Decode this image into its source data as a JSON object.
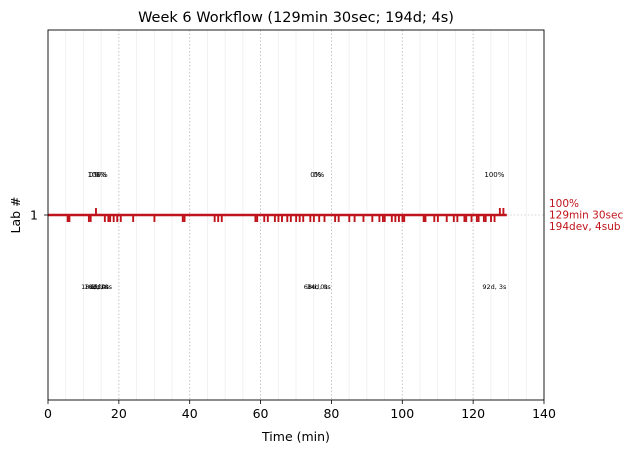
{
  "chart_data": {
    "type": "line",
    "title": "Week 6 Workflow (129min 30sec; 194d; 4s)",
    "xlabel": "Time (min)",
    "ylabel": "Lab #",
    "xlim": [
      0,
      140
    ],
    "xticks": [
      0,
      20,
      40,
      60,
      80,
      100,
      120,
      140
    ],
    "xtick_labels": [
      "0",
      "20",
      "40",
      "60",
      "80",
      "100",
      "120",
      "140"
    ],
    "yticks": [
      1
    ],
    "ytick_labels": [
      "1"
    ],
    "grid": {
      "major_x": true,
      "minor_x": true,
      "style": "dotted"
    },
    "series": [
      {
        "lab": 1,
        "color": "#c0141c",
        "x_start": 0,
        "x_end": 129.5,
        "end_label": [
          "100%",
          "129min 30sec",
          "194dev, 4sub"
        ],
        "events_down": [
          5.5,
          6,
          11.5,
          12,
          16,
          17,
          17.5,
          18.5,
          19.5,
          20.5,
          24,
          30,
          38,
          38.5,
          47,
          48,
          49,
          58.5,
          59,
          61,
          62,
          64,
          65,
          66,
          67.5,
          68.5,
          70,
          71,
          72,
          74,
          75,
          76.5,
          78,
          81,
          82,
          85,
          86.5,
          89,
          91.5,
          93.5,
          94.5,
          95,
          97,
          98,
          99,
          100,
          100.5,
          106,
          106.5,
          109,
          110,
          112.5,
          114.5,
          115.5,
          117.5,
          118,
          119.5,
          121,
          121.5,
          123,
          123.5,
          125,
          126
        ],
        "events_up": [
          13.5,
          127.5,
          128.5
        ],
        "annotations": [
          {
            "x": 14,
            "pct_labels": [
              "0%",
              "100%",
              "0%"
            ],
            "time_labels": [
              "18d, 0s",
              "16d, 1s",
              "1d, 0s",
              "2d, 0s"
            ]
          },
          {
            "x": 76,
            "pct_labels": [
              "0%",
              "0%"
            ],
            "time_labels": [
              "68d, 0s",
              "34d, 0s"
            ]
          },
          {
            "x": 126,
            "pct_labels": [
              "100%"
            ],
            "time_labels": [
              "92d, 3s"
            ]
          }
        ]
      }
    ]
  }
}
